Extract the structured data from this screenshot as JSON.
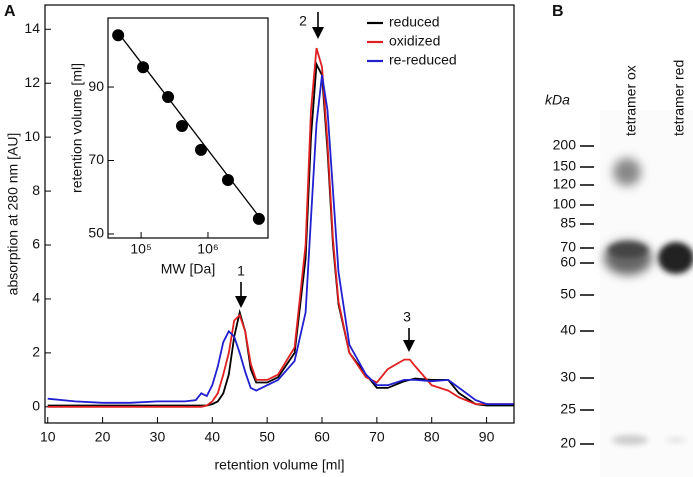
{
  "panels": [
    "A",
    "B"
  ],
  "chart_data": [
    {
      "type": "line",
      "x_label": "retention volume  [ml]",
      "y_label": "absorption at 280 nm  [AU]",
      "xlim": [
        9.5,
        95
      ],
      "ylim": [
        -0.6,
        14.9
      ],
      "xticks": [
        10,
        20,
        30,
        40,
        50,
        60,
        70,
        80,
        90
      ],
      "yticks": [
        0,
        2,
        4,
        6,
        8,
        10,
        12,
        14
      ],
      "legend": "upper right",
      "annotations": [
        "1",
        "2",
        "3"
      ],
      "x": [
        10,
        15,
        20,
        25,
        30,
        35,
        37,
        38,
        39,
        40,
        41,
        42,
        43,
        44,
        45,
        46,
        47,
        48,
        50,
        52,
        55,
        57,
        58,
        59,
        60,
        61,
        62,
        63,
        65,
        68,
        70,
        72,
        75,
        76,
        77,
        80,
        83,
        85,
        88,
        90,
        95
      ],
      "series": [
        {
          "name": "reduced",
          "color": "#000000",
          "values": [
            0.05,
            0.05,
            0.05,
            0.05,
            0.05,
            0.05,
            0.05,
            0.05,
            0.05,
            0.1,
            0.2,
            0.5,
            1.2,
            2.6,
            3.5,
            2.8,
            1.4,
            0.9,
            0.9,
            1.1,
            2.0,
            5.5,
            10,
            12.7,
            12.3,
            9.5,
            6.0,
            3.8,
            2.0,
            1.2,
            0.7,
            0.7,
            0.95,
            1.0,
            1.05,
            1.0,
            1.0,
            0.5,
            0.1,
            0.05,
            0.05
          ]
        },
        {
          "name": "oxidized",
          "color": "#e02020",
          "values": [
            0,
            0,
            0,
            0,
            0,
            0,
            0,
            0,
            0.05,
            0.2,
            0.5,
            1.2,
            2.0,
            3.2,
            3.4,
            2.8,
            1.6,
            1.0,
            1.0,
            1.2,
            2.2,
            6,
            11,
            13.3,
            12.6,
            9.8,
            6.2,
            3.9,
            2.0,
            1.1,
            0.9,
            1.4,
            1.75,
            1.75,
            1.5,
            0.8,
            0.6,
            0.35,
            0.1,
            0.1,
            0.1
          ]
        },
        {
          "name": "re-reduced",
          "color": "#2020d0",
          "values": [
            0.3,
            0.2,
            0.15,
            0.15,
            0.2,
            0.2,
            0.25,
            0.5,
            0.4,
            0.8,
            1.5,
            2.4,
            2.8,
            2.6,
            2.0,
            1.3,
            0.7,
            0.6,
            0.8,
            1.0,
            1.7,
            3.5,
            7,
            10.5,
            12.3,
            11,
            8,
            5,
            2.3,
            1.2,
            0.8,
            0.8,
            1.0,
            1.0,
            1.0,
            0.95,
            1.0,
            0.7,
            0.25,
            0.1,
            0.1
          ]
        }
      ]
    },
    {
      "type": "scatter",
      "x_label": "MW  [Da]",
      "y_label": "retention volume  [ml]",
      "xscale": "log",
      "xlim": [
        32000,
        7900000
      ],
      "ylim": [
        48.9,
        108.8
      ],
      "xticks": [
        {
          "value": 100000,
          "label": "10⁵"
        },
        {
          "value": 1000000,
          "label": "10⁶"
        }
      ],
      "yticks": [
        50,
        70,
        90
      ],
      "color": "#000000",
      "x": [
        45400,
        107000,
        253000,
        409000,
        787000,
        1990000,
        5770000
      ],
      "values": [
        104.1,
        95.4,
        87.3,
        79.4,
        72.9,
        64.7,
        54.1
      ],
      "fit": {
        "x": [
          42000,
          6600000
        ],
        "values": [
          105.6,
          53.4
        ]
      }
    }
  ],
  "gel": {
    "unit": "kDa",
    "lanes": [
      "tetramer ox",
      "tetramer red"
    ],
    "markers": [
      200,
      150,
      120,
      100,
      85,
      70,
      60,
      50,
      40,
      30,
      25,
      20
    ]
  }
}
